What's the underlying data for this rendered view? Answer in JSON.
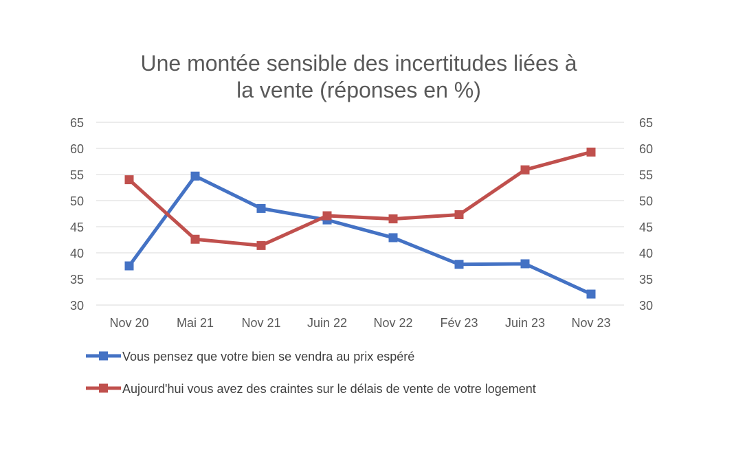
{
  "chart_data": {
    "type": "line",
    "title_lines": [
      "Une montée sensible des incertitudes liées à",
      "la vente (réponses en %)"
    ],
    "categories": [
      "Nov 20",
      "Mai 21",
      "Nov 21",
      "Juin 22",
      "Nov 22",
      "Fév 23",
      "Juin 23",
      "Nov 23"
    ],
    "ylim": [
      30,
      65
    ],
    "yticks": [
      "30",
      "35",
      "40",
      "45",
      "50",
      "55",
      "60",
      "65"
    ],
    "ytick_values": [
      30,
      35,
      40,
      45,
      50,
      55,
      60,
      65
    ],
    "grid": true,
    "legend_position": "bottom",
    "series": [
      {
        "name": "Vous pensez que votre bien se vendra au prix espéré",
        "color": "#4472c4",
        "values": [
          37.5,
          54.7,
          48.5,
          46.3,
          42.9,
          37.8,
          37.9,
          32.1
        ]
      },
      {
        "name": "Aujourd'hui vous avez des craintes sur le délais de vente de votre logement",
        "color": "#c0504d",
        "values": [
          54.0,
          42.6,
          41.4,
          47.1,
          46.5,
          47.3,
          55.9,
          59.3
        ]
      }
    ]
  }
}
